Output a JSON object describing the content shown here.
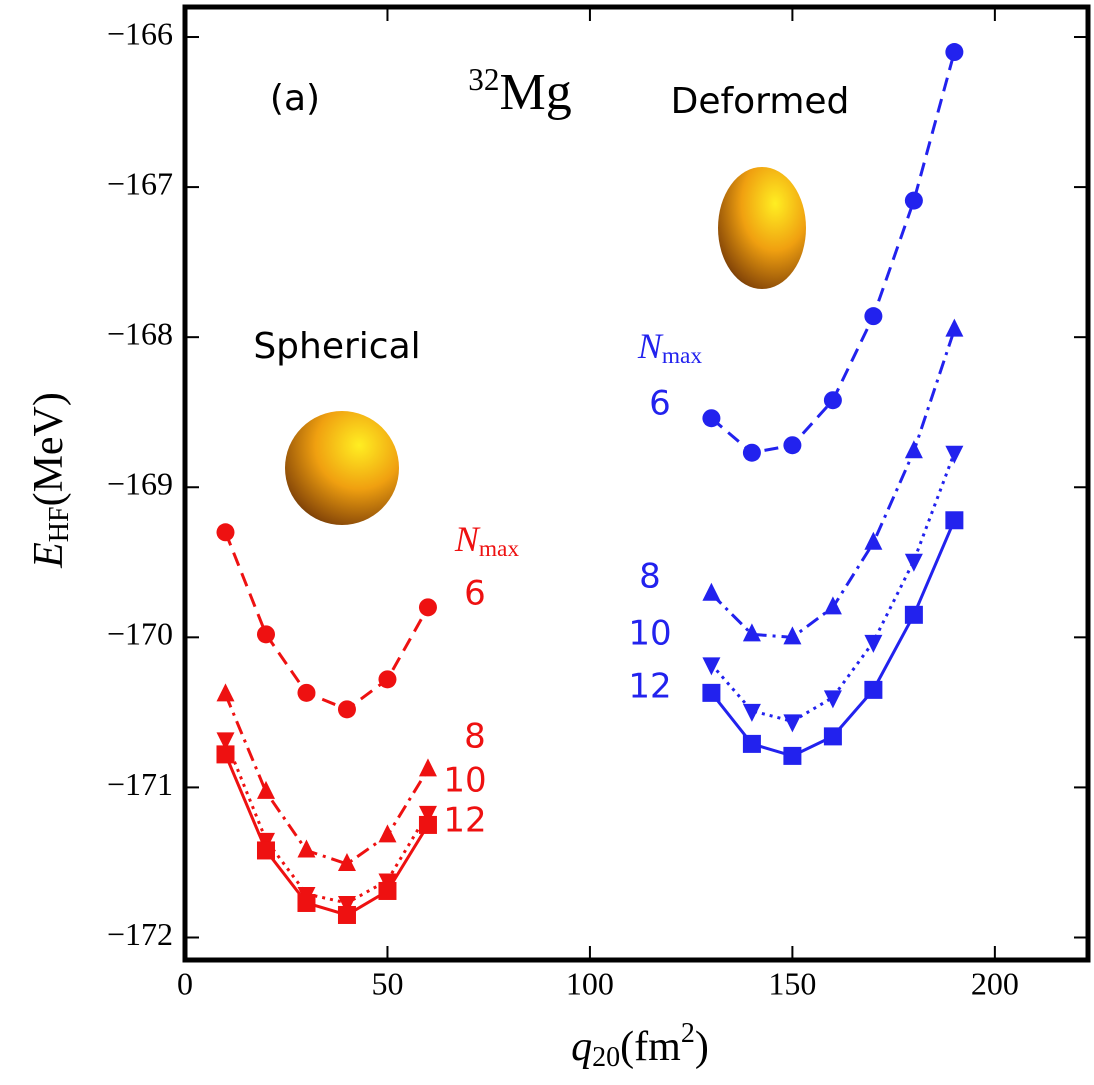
{
  "chart_data": {
    "type": "line",
    "annotations": [
      {
        "text": "(a)"
      },
      {
        "sup": "32",
        "text": "Mg"
      },
      {
        "text": "Deformed"
      },
      {
        "text": "Spherical"
      },
      {
        "text": "N",
        "sub": "max",
        "color": "#ee1111"
      },
      {
        "text": "N",
        "sub": "max",
        "color": "#2222ee"
      }
    ],
    "x_label": {
      "text": "q",
      "sub": "20",
      "unit": "(fm",
      "unit_sup": "2",
      "close": ")"
    },
    "y_label": {
      "text": "E",
      "sub": "HF",
      "unit": "(MeV)"
    },
    "xlim": [
      0,
      223
    ],
    "ylim": [
      -172.15,
      -165.8
    ],
    "xticks": [
      0,
      50,
      100,
      150,
      200
    ],
    "yticks": [
      {
        "value": -166,
        "label": "−166"
      },
      {
        "value": -167,
        "label": "−167"
      },
      {
        "value": -168,
        "label": "−168"
      },
      {
        "value": -169,
        "label": "−169"
      },
      {
        "value": -170,
        "label": "−170"
      },
      {
        "value": -171,
        "label": "−171"
      },
      {
        "value": -172,
        "label": "−172"
      }
    ],
    "series": [
      {
        "name": "6",
        "color": "#ee1111",
        "marker": "circle",
        "dash": "14 8",
        "x": [
          10,
          20,
          30,
          40,
          50,
          60
        ],
        "values": [
          -169.3,
          -169.98,
          -170.37,
          -170.48,
          -170.28,
          -169.8
        ]
      },
      {
        "name": "8",
        "color": "#ee1111",
        "marker": "triangle-up",
        "dash": "14 6 3 6",
        "x": [
          10,
          20,
          30,
          40,
          50,
          60
        ],
        "values": [
          -170.38,
          -171.03,
          -171.42,
          -171.51,
          -171.32,
          -170.88
        ]
      },
      {
        "name": "10",
        "color": "#ee1111",
        "marker": "triangle-down",
        "dash": "3 5",
        "x": [
          10,
          20,
          30,
          40,
          50,
          60
        ],
        "values": [
          -170.68,
          -171.35,
          -171.71,
          -171.77,
          -171.62,
          -171.17
        ]
      },
      {
        "name": "12",
        "color": "#ee1111",
        "marker": "square",
        "dash": "none",
        "x": [
          10,
          20,
          30,
          40,
          50,
          60
        ],
        "values": [
          -170.78,
          -171.42,
          -171.77,
          -171.85,
          -171.69,
          -171.25
        ]
      },
      {
        "name": "6",
        "color": "#2222ee",
        "marker": "circle",
        "dash": "14 8",
        "x": [
          130,
          140,
          150,
          160,
          170,
          180,
          190
        ],
        "values": [
          -168.54,
          -168.77,
          -168.72,
          -168.42,
          -167.86,
          -167.09,
          -166.1
        ]
      },
      {
        "name": "8",
        "color": "#2222ee",
        "marker": "triangle-up",
        "dash": "14 6 3 6",
        "x": [
          130,
          140,
          150,
          160,
          170,
          180,
          190
        ],
        "values": [
          -169.71,
          -169.98,
          -170.0,
          -169.8,
          -169.37,
          -168.76,
          -167.95
        ]
      },
      {
        "name": "10",
        "color": "#2222ee",
        "marker": "triangle-down",
        "dash": "3 5",
        "x": [
          130,
          140,
          150,
          160,
          170,
          180,
          190
        ],
        "values": [
          -170.18,
          -170.49,
          -170.56,
          -170.4,
          -170.03,
          -169.49,
          -168.77
        ]
      },
      {
        "name": "12",
        "color": "#2222ee",
        "marker": "square",
        "dash": "none",
        "x": [
          130,
          140,
          150,
          160,
          170,
          180,
          190
        ],
        "values": [
          -170.37,
          -170.71,
          -170.79,
          -170.66,
          -170.35,
          -169.85,
          -169.22
        ]
      }
    ]
  }
}
